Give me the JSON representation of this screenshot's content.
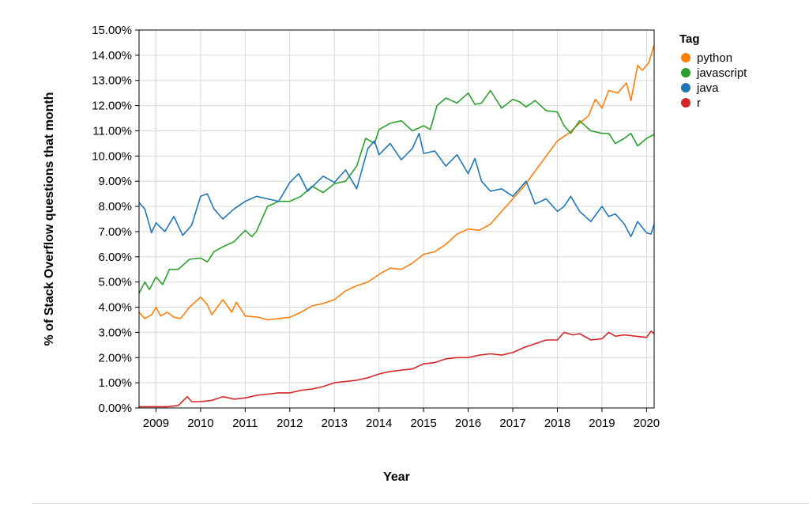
{
  "chart_data": {
    "type": "line",
    "xlabel": "Year",
    "ylabel": "% of Stack Overflow questions that month",
    "xlim": [
      2008.62,
      2020.17
    ],
    "ylim": [
      0,
      15
    ],
    "x_ticks": [
      2009,
      2010,
      2011,
      2012,
      2013,
      2014,
      2015,
      2016,
      2017,
      2018,
      2019,
      2020
    ],
    "x_tick_labels": [
      "2009",
      "2010",
      "2011",
      "2012",
      "2013",
      "2014",
      "2015",
      "2016",
      "2017",
      "2018",
      "2019",
      "2020"
    ],
    "y_ticks": [
      0,
      1,
      2,
      3,
      4,
      5,
      6,
      7,
      8,
      9,
      10,
      11,
      12,
      13,
      14,
      15
    ],
    "y_tick_labels": [
      "0.00%",
      "1.00%",
      "2.00%",
      "3.00%",
      "4.00%",
      "5.00%",
      "6.00%",
      "7.00%",
      "8.00%",
      "9.00%",
      "10.00%",
      "11.00%",
      "12.00%",
      "13.00%",
      "14.00%",
      "15.00%"
    ],
    "grid": true,
    "legend": {
      "title": "Tag",
      "position": "right"
    },
    "series": [
      {
        "name": "python",
        "color": "#ff7f0e",
        "points": [
          [
            2008.62,
            3.8
          ],
          [
            2008.75,
            3.55
          ],
          [
            2008.9,
            3.7
          ],
          [
            2009.0,
            4.0
          ],
          [
            2009.1,
            3.65
          ],
          [
            2009.25,
            3.8
          ],
          [
            2009.4,
            3.6
          ],
          [
            2009.55,
            3.55
          ],
          [
            2009.75,
            4.0
          ],
          [
            2010.0,
            4.4
          ],
          [
            2010.15,
            4.1
          ],
          [
            2010.25,
            3.7
          ],
          [
            2010.5,
            4.3
          ],
          [
            2010.7,
            3.8
          ],
          [
            2010.8,
            4.2
          ],
          [
            2011.0,
            3.65
          ],
          [
            2011.3,
            3.6
          ],
          [
            2011.5,
            3.5
          ],
          [
            2011.75,
            3.55
          ],
          [
            2012.0,
            3.6
          ],
          [
            2012.25,
            3.8
          ],
          [
            2012.5,
            4.05
          ],
          [
            2012.75,
            4.15
          ],
          [
            2013.0,
            4.3
          ],
          [
            2013.25,
            4.65
          ],
          [
            2013.5,
            4.85
          ],
          [
            2013.75,
            5.0
          ],
          [
            2014.0,
            5.3
          ],
          [
            2014.25,
            5.55
          ],
          [
            2014.5,
            5.5
          ],
          [
            2014.75,
            5.75
          ],
          [
            2015.0,
            6.1
          ],
          [
            2015.25,
            6.2
          ],
          [
            2015.5,
            6.5
          ],
          [
            2015.75,
            6.9
          ],
          [
            2016.0,
            7.1
          ],
          [
            2016.25,
            7.05
          ],
          [
            2016.5,
            7.3
          ],
          [
            2016.75,
            7.8
          ],
          [
            2017.0,
            8.3
          ],
          [
            2017.25,
            8.8
          ],
          [
            2017.5,
            9.4
          ],
          [
            2017.75,
            10.0
          ],
          [
            2018.0,
            10.6
          ],
          [
            2018.25,
            10.9
          ],
          [
            2018.5,
            11.3
          ],
          [
            2018.7,
            11.6
          ],
          [
            2018.85,
            12.25
          ],
          [
            2019.0,
            11.9
          ],
          [
            2019.15,
            12.6
          ],
          [
            2019.35,
            12.5
          ],
          [
            2019.55,
            12.9
          ],
          [
            2019.65,
            12.2
          ],
          [
            2019.8,
            13.6
          ],
          [
            2019.9,
            13.4
          ],
          [
            2020.05,
            13.7
          ],
          [
            2020.17,
            14.4
          ]
        ]
      },
      {
        "name": "javascript",
        "color": "#2ca02c",
        "points": [
          [
            2008.62,
            4.55
          ],
          [
            2008.75,
            5.0
          ],
          [
            2008.85,
            4.7
          ],
          [
            2009.0,
            5.2
          ],
          [
            2009.15,
            4.9
          ],
          [
            2009.3,
            5.5
          ],
          [
            2009.5,
            5.5
          ],
          [
            2009.75,
            5.9
          ],
          [
            2010.0,
            5.95
          ],
          [
            2010.15,
            5.8
          ],
          [
            2010.3,
            6.2
          ],
          [
            2010.5,
            6.4
          ],
          [
            2010.75,
            6.6
          ],
          [
            2011.0,
            7.05
          ],
          [
            2011.15,
            6.8
          ],
          [
            2011.25,
            7.0
          ],
          [
            2011.5,
            8.0
          ],
          [
            2011.75,
            8.2
          ],
          [
            2012.0,
            8.2
          ],
          [
            2012.25,
            8.4
          ],
          [
            2012.5,
            8.8
          ],
          [
            2012.75,
            8.55
          ],
          [
            2013.0,
            8.9
          ],
          [
            2013.25,
            9.0
          ],
          [
            2013.5,
            9.6
          ],
          [
            2013.7,
            10.7
          ],
          [
            2013.9,
            10.5
          ],
          [
            2014.0,
            11.05
          ],
          [
            2014.25,
            11.3
          ],
          [
            2014.5,
            11.4
          ],
          [
            2014.75,
            11.0
          ],
          [
            2015.0,
            11.2
          ],
          [
            2015.15,
            11.05
          ],
          [
            2015.3,
            12.0
          ],
          [
            2015.5,
            12.3
          ],
          [
            2015.75,
            12.1
          ],
          [
            2016.0,
            12.5
          ],
          [
            2016.15,
            12.05
          ],
          [
            2016.3,
            12.1
          ],
          [
            2016.5,
            12.6
          ],
          [
            2016.75,
            11.9
          ],
          [
            2017.0,
            12.25
          ],
          [
            2017.15,
            12.15
          ],
          [
            2017.3,
            11.95
          ],
          [
            2017.5,
            12.2
          ],
          [
            2017.75,
            11.8
          ],
          [
            2018.0,
            11.75
          ],
          [
            2018.15,
            11.2
          ],
          [
            2018.3,
            10.9
          ],
          [
            2018.5,
            11.4
          ],
          [
            2018.75,
            11.0
          ],
          [
            2019.0,
            10.9
          ],
          [
            2019.15,
            10.9
          ],
          [
            2019.3,
            10.5
          ],
          [
            2019.5,
            10.7
          ],
          [
            2019.65,
            10.9
          ],
          [
            2019.8,
            10.4
          ],
          [
            2020.0,
            10.7
          ],
          [
            2020.17,
            10.85
          ]
        ]
      },
      {
        "name": "java",
        "color": "#1f77b4",
        "points": [
          [
            2008.62,
            8.15
          ],
          [
            2008.75,
            7.9
          ],
          [
            2008.9,
            6.95
          ],
          [
            2009.0,
            7.35
          ],
          [
            2009.2,
            7.0
          ],
          [
            2009.4,
            7.6
          ],
          [
            2009.6,
            6.85
          ],
          [
            2009.8,
            7.25
          ],
          [
            2010.0,
            8.4
          ],
          [
            2010.15,
            8.5
          ],
          [
            2010.3,
            7.9
          ],
          [
            2010.5,
            7.5
          ],
          [
            2010.75,
            7.9
          ],
          [
            2011.0,
            8.2
          ],
          [
            2011.25,
            8.4
          ],
          [
            2011.5,
            8.3
          ],
          [
            2011.75,
            8.2
          ],
          [
            2012.0,
            8.95
          ],
          [
            2012.2,
            9.3
          ],
          [
            2012.4,
            8.6
          ],
          [
            2012.75,
            9.2
          ],
          [
            2013.0,
            8.95
          ],
          [
            2013.25,
            9.45
          ],
          [
            2013.5,
            8.7
          ],
          [
            2013.75,
            10.3
          ],
          [
            2013.9,
            10.6
          ],
          [
            2014.0,
            10.05
          ],
          [
            2014.25,
            10.5
          ],
          [
            2014.5,
            9.85
          ],
          [
            2014.75,
            10.3
          ],
          [
            2014.9,
            10.9
          ],
          [
            2015.0,
            10.1
          ],
          [
            2015.25,
            10.2
          ],
          [
            2015.5,
            9.6
          ],
          [
            2015.75,
            10.05
          ],
          [
            2016.0,
            9.3
          ],
          [
            2016.15,
            9.9
          ],
          [
            2016.3,
            9.0
          ],
          [
            2016.5,
            8.6
          ],
          [
            2016.75,
            8.7
          ],
          [
            2017.0,
            8.4
          ],
          [
            2017.15,
            8.7
          ],
          [
            2017.3,
            9.0
          ],
          [
            2017.5,
            8.1
          ],
          [
            2017.75,
            8.3
          ],
          [
            2018.0,
            7.8
          ],
          [
            2018.15,
            8.0
          ],
          [
            2018.3,
            8.4
          ],
          [
            2018.5,
            7.8
          ],
          [
            2018.75,
            7.4
          ],
          [
            2019.0,
            8.0
          ],
          [
            2019.15,
            7.6
          ],
          [
            2019.3,
            7.7
          ],
          [
            2019.5,
            7.3
          ],
          [
            2019.65,
            6.8
          ],
          [
            2019.8,
            7.4
          ],
          [
            2020.0,
            6.95
          ],
          [
            2020.1,
            6.9
          ],
          [
            2020.17,
            7.3
          ]
        ]
      },
      {
        "name": "r",
        "color": "#d62728",
        "points": [
          [
            2008.62,
            0.05
          ],
          [
            2008.75,
            0.05
          ],
          [
            2009.0,
            0.05
          ],
          [
            2009.25,
            0.05
          ],
          [
            2009.5,
            0.1
          ],
          [
            2009.7,
            0.45
          ],
          [
            2009.8,
            0.25
          ],
          [
            2010.0,
            0.25
          ],
          [
            2010.25,
            0.3
          ],
          [
            2010.5,
            0.45
          ],
          [
            2010.75,
            0.35
          ],
          [
            2011.0,
            0.4
          ],
          [
            2011.25,
            0.5
          ],
          [
            2011.5,
            0.55
          ],
          [
            2011.75,
            0.6
          ],
          [
            2012.0,
            0.6
          ],
          [
            2012.25,
            0.7
          ],
          [
            2012.5,
            0.75
          ],
          [
            2012.75,
            0.85
          ],
          [
            2013.0,
            1.0
          ],
          [
            2013.25,
            1.05
          ],
          [
            2013.5,
            1.1
          ],
          [
            2013.75,
            1.2
          ],
          [
            2014.0,
            1.35
          ],
          [
            2014.25,
            1.45
          ],
          [
            2014.5,
            1.5
          ],
          [
            2014.75,
            1.55
          ],
          [
            2015.0,
            1.75
          ],
          [
            2015.25,
            1.8
          ],
          [
            2015.5,
            1.95
          ],
          [
            2015.75,
            2.0
          ],
          [
            2016.0,
            2.0
          ],
          [
            2016.25,
            2.1
          ],
          [
            2016.5,
            2.15
          ],
          [
            2016.75,
            2.1
          ],
          [
            2017.0,
            2.2
          ],
          [
            2017.25,
            2.4
          ],
          [
            2017.5,
            2.55
          ],
          [
            2017.75,
            2.7
          ],
          [
            2018.0,
            2.7
          ],
          [
            2018.15,
            3.0
          ],
          [
            2018.35,
            2.9
          ],
          [
            2018.5,
            2.95
          ],
          [
            2018.75,
            2.7
          ],
          [
            2019.0,
            2.75
          ],
          [
            2019.15,
            3.0
          ],
          [
            2019.3,
            2.85
          ],
          [
            2019.5,
            2.9
          ],
          [
            2019.75,
            2.85
          ],
          [
            2020.0,
            2.8
          ],
          [
            2020.1,
            3.05
          ],
          [
            2020.17,
            2.95
          ]
        ]
      }
    ]
  }
}
